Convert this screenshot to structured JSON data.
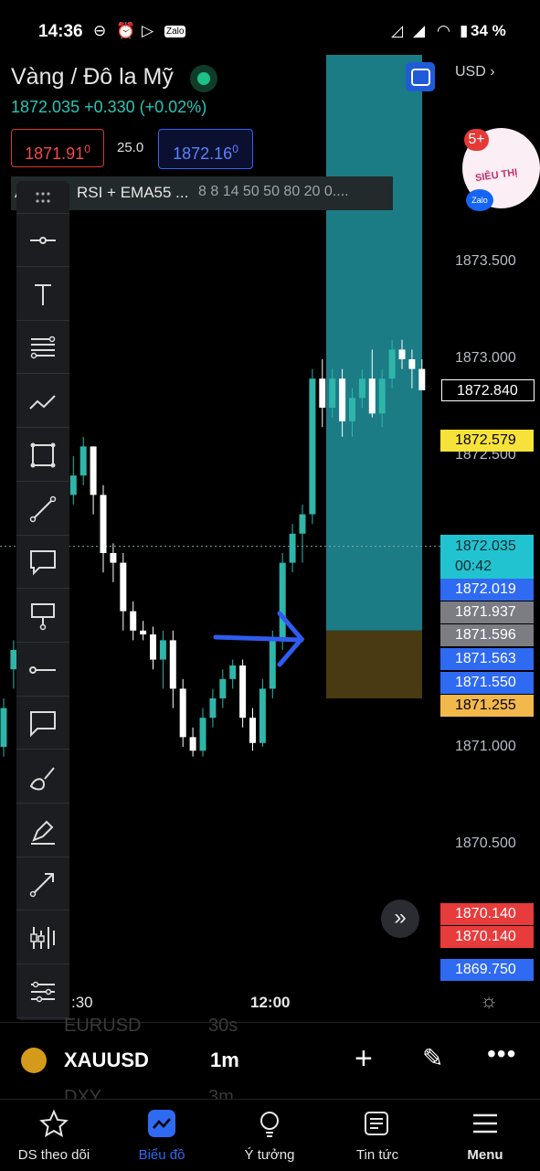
{
  "status_bar": {
    "time": "14:36",
    "battery": "34 %"
  },
  "header": {
    "symbol_name": "Vàng / Đô la Mỹ",
    "last_price": "1872.035",
    "change": "+0.330 (+0.02%)",
    "sell_price": "1871.91",
    "sell_price_sup": "0",
    "spread": "25.0",
    "buy_price": "1872.16",
    "buy_price_sup": "0",
    "currency": "USD",
    "indicator_label": "RSI + EMA55 ...",
    "indicator_prefix": "A",
    "indicator_values": "8 8 14 50 50 80 20 0...."
  },
  "price_axis": {
    "ticks": [
      "1873.500",
      "1873.000",
      "1872.500",
      "1871.000",
      "1870.500"
    ],
    "tags": [
      {
        "value": "1872.840",
        "color": "#000000"
      },
      {
        "value": "1872.579",
        "color": "#f7e23a"
      },
      {
        "value": "1872.035",
        "sub": "00:42",
        "color": "#22c3d0"
      },
      {
        "value": "1872.019",
        "color": "#2f6af2"
      },
      {
        "value": "1871.937",
        "color": "#7b7d82"
      },
      {
        "value": "1871.596",
        "color": "#7b7d82"
      },
      {
        "value": "1871.563",
        "color": "#2f6af2"
      },
      {
        "value": "1871.550",
        "color": "#2f6af2"
      },
      {
        "value": "1871.255",
        "color": "#f2b84b"
      },
      {
        "value": "1870.140",
        "color": "#e83b3b"
      },
      {
        "value": "1870.140",
        "color": "#e83b3b"
      },
      {
        "value": "1869.750",
        "color": "#2f6af2"
      }
    ]
  },
  "time_axis": {
    "labels": [
      ":30",
      "12:00"
    ]
  },
  "promo": {
    "badge": "5+",
    "text": "SIÊU THỊ",
    "brand": "Zalo"
  },
  "toolbar": {
    "tools": [
      "drag-handle",
      "horizontal-ray",
      "text",
      "fib-retracement",
      "polyline",
      "rectangle",
      "trend-line",
      "callout",
      "price-note",
      "horizontal-line",
      "comment",
      "brush",
      "highlighter",
      "arrow",
      "indicators",
      "settings-lines"
    ]
  },
  "symbol_bar": {
    "symbol": "XAUUSD",
    "interval": "1m",
    "ghost_above": "EURUSD",
    "ghost_above_2": "30s",
    "ghost_below": "DXY",
    "ghost_below_2": "3m"
  },
  "navbar": {
    "items": [
      {
        "label": "DS theo dõi",
        "active": false
      },
      {
        "label": "Biểu đồ",
        "active": true
      },
      {
        "label": "Ý tưởng",
        "active": false
      },
      {
        "label": "Tin tức",
        "active": false
      },
      {
        "label": "Menu",
        "active": false
      }
    ]
  },
  "chart_data": {
    "type": "candlestick",
    "ylim": [
      1869.5,
      1873.8
    ],
    "candles": [
      [
        1871.0,
        1871.25,
        1870.95,
        1871.2
      ],
      [
        1871.4,
        1871.55,
        1871.3,
        1871.5
      ],
      [
        1872.0,
        1872.15,
        1871.9,
        1872.1
      ],
      [
        1872.1,
        1872.25,
        1871.95,
        1871.98
      ],
      [
        1871.98,
        1872.05,
        1871.9,
        1872.0
      ],
      [
        1872.0,
        1872.2,
        1871.95,
        1872.18
      ],
      [
        1872.18,
        1872.35,
        1872.1,
        1872.3
      ],
      [
        1872.3,
        1872.5,
        1872.25,
        1872.4
      ],
      [
        1872.4,
        1872.6,
        1872.35,
        1872.55
      ],
      [
        1872.55,
        1872.55,
        1872.2,
        1872.3
      ],
      [
        1872.3,
        1872.35,
        1871.9,
        1872.0
      ],
      [
        1872.0,
        1872.05,
        1871.85,
        1871.95
      ],
      [
        1871.95,
        1872.0,
        1871.6,
        1871.7
      ],
      [
        1871.7,
        1871.75,
        1871.55,
        1871.6
      ],
      [
        1871.6,
        1871.65,
        1871.55,
        1871.58
      ],
      [
        1871.58,
        1871.62,
        1871.4,
        1871.45
      ],
      [
        1871.45,
        1871.6,
        1871.3,
        1871.55
      ],
      [
        1871.55,
        1871.6,
        1871.2,
        1871.3
      ],
      [
        1871.3,
        1871.35,
        1871.0,
        1871.05
      ],
      [
        1871.05,
        1871.1,
        1870.95,
        1870.98
      ],
      [
        1870.98,
        1871.2,
        1870.95,
        1871.15
      ],
      [
        1871.15,
        1871.3,
        1871.1,
        1871.25
      ],
      [
        1871.25,
        1871.4,
        1871.2,
        1871.35
      ],
      [
        1871.35,
        1871.45,
        1871.3,
        1871.42
      ],
      [
        1871.42,
        1871.45,
        1871.1,
        1871.15
      ],
      [
        1871.15,
        1871.2,
        1870.98,
        1871.02
      ],
      [
        1871.02,
        1871.35,
        1871.0,
        1871.3
      ],
      [
        1871.3,
        1871.6,
        1871.25,
        1871.55
      ],
      [
        1871.55,
        1872.0,
        1871.5,
        1871.95
      ],
      [
        1871.95,
        1872.15,
        1871.9,
        1872.1
      ],
      [
        1872.1,
        1872.25,
        1871.95,
        1872.2
      ],
      [
        1872.2,
        1872.95,
        1872.15,
        1872.9
      ],
      [
        1872.9,
        1873.0,
        1872.65,
        1872.75
      ],
      [
        1872.75,
        1872.95,
        1872.7,
        1872.9
      ],
      [
        1872.9,
        1872.95,
        1872.6,
        1872.68
      ],
      [
        1872.68,
        1872.85,
        1872.6,
        1872.8
      ],
      [
        1872.8,
        1872.95,
        1872.75,
        1872.9
      ],
      [
        1872.9,
        1873.05,
        1872.7,
        1872.72
      ],
      [
        1872.72,
        1872.95,
        1872.65,
        1872.9
      ],
      [
        1872.9,
        1873.1,
        1872.85,
        1873.05
      ],
      [
        1873.05,
        1873.1,
        1872.95,
        1873.0
      ],
      [
        1873.0,
        1873.05,
        1872.85,
        1872.95
      ],
      [
        1872.95,
        1873.0,
        1872.84,
        1872.84
      ]
    ],
    "current_price": 1872.035,
    "long_position": {
      "target": 1873.75,
      "entry": 1871.6,
      "stop": 1871.25
    }
  }
}
